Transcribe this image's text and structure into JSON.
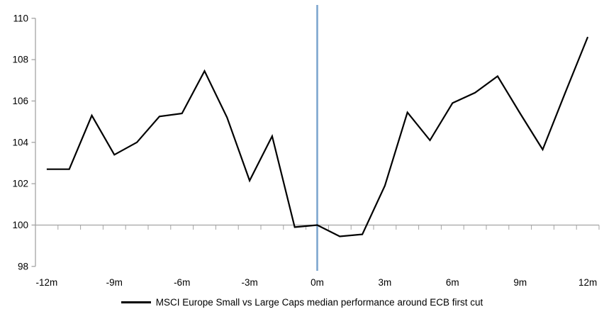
{
  "chart_data": {
    "type": "line",
    "x_months": [
      -12,
      -11,
      -10,
      -9,
      -8,
      -7,
      -6,
      -5,
      -4,
      -3,
      -2,
      -1,
      0,
      1,
      2,
      3,
      4,
      5,
      6,
      7,
      8,
      9,
      10,
      11,
      12
    ],
    "series": [
      {
        "name": "MSCI Europe Small vs Large Caps median performance around ECB first cut",
        "color": "#000000",
        "values": [
          102.7,
          102.7,
          105.3,
          103.4,
          104.0,
          105.25,
          105.4,
          107.45,
          105.2,
          102.15,
          104.3,
          99.9,
          100.0,
          99.45,
          99.55,
          101.9,
          105.45,
          104.1,
          105.9,
          106.4,
          107.2,
          105.4,
          103.65,
          106.4,
          109.1
        ]
      }
    ],
    "x_tick_months": [
      -12,
      -9,
      -6,
      -3,
      0,
      3,
      6,
      9,
      12
    ],
    "x_tick_labels": [
      "-12m",
      "-9m",
      "-6m",
      "-3m",
      "0m",
      "3m",
      "6m",
      "9m",
      "12m"
    ],
    "y_tick_values": [
      110,
      108,
      106,
      104,
      102,
      100,
      98
    ],
    "y_tick_labels": [
      "110",
      "108",
      "106",
      "104",
      "102",
      "100",
      "98"
    ],
    "ylim": [
      98,
      110
    ],
    "category_axis_value": 100,
    "event_line_month": 0,
    "grid": "off",
    "legend_position": "bottom",
    "colors": {
      "series_line": "#000000",
      "event_line": "#7da6cf",
      "axis_line": "#a3a3a3",
      "label_text": "#000000"
    }
  }
}
